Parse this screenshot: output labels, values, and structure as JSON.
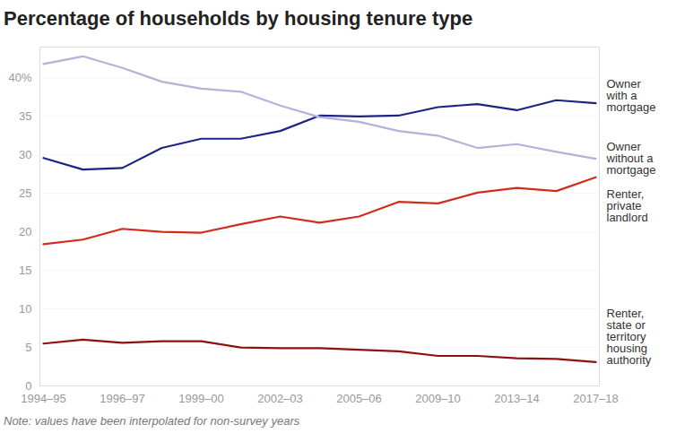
{
  "chart_data": {
    "type": "line",
    "title": "Percentage of households by housing tenure type",
    "note": "Note: values have been interpolated for non-survey years",
    "categories": [
      "1994–95",
      null,
      "1996–97",
      null,
      "1999–00",
      null,
      "2002–03",
      null,
      "2005–06",
      null,
      "2009–10",
      null,
      "2013–14",
      null,
      "2017–18"
    ],
    "series": [
      {
        "name": "Owner\nwith a\nmortgage",
        "color": "#1f2386",
        "values": [
          29.6,
          28.1,
          28.3,
          30.9,
          32.1,
          32.1,
          33.1,
          35.1,
          35.0,
          35.1,
          36.2,
          36.6,
          35.8,
          37.1,
          36.7
        ]
      },
      {
        "name": "Owner\nwithout a\nmortgage",
        "color": "#b1b3da",
        "values": [
          41.8,
          42.8,
          41.3,
          39.5,
          38.6,
          38.2,
          36.4,
          34.9,
          34.3,
          33.1,
          32.5,
          30.9,
          31.4,
          30.4,
          29.5
        ]
      },
      {
        "name": "Renter,\nprivate\nlandlord",
        "color": "#d42a1c",
        "values": [
          18.4,
          19.0,
          20.4,
          20.0,
          19.9,
          21.0,
          22.0,
          21.2,
          22.0,
          23.9,
          23.7,
          25.1,
          25.7,
          25.3,
          27.1
        ]
      },
      {
        "name": "Renter,\nstate or\nterritory\nhousing\nauthority",
        "color": "#8e1010",
        "values": [
          5.5,
          6.0,
          5.6,
          5.8,
          5.8,
          5.0,
          4.9,
          4.9,
          4.7,
          4.5,
          3.9,
          3.9,
          3.6,
          3.5,
          3.1
        ]
      }
    ],
    "ylim": [
      0,
      44
    ],
    "yticks": [
      0,
      5,
      10,
      15,
      20,
      25,
      30,
      35,
      {
        "value": 40,
        "label": "40%"
      }
    ],
    "grid": true
  }
}
